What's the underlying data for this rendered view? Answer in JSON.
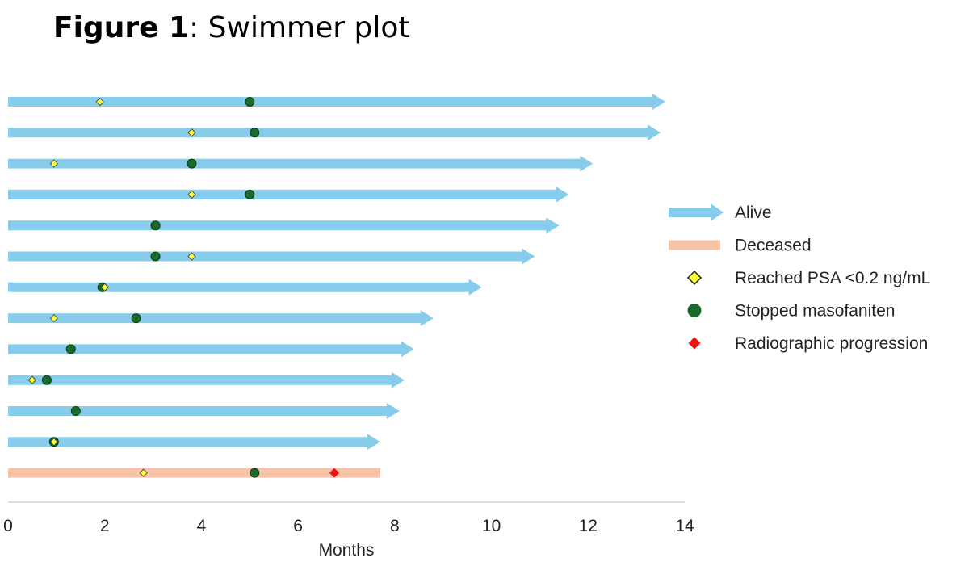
{
  "title": {
    "bold": "Figure 1",
    "rest": ": Swimmer plot"
  },
  "chart_data": {
    "type": "swimmer",
    "xlabel": "Months",
    "ylabel": "",
    "xlim": [
      0,
      14
    ],
    "xticks": [
      0,
      2,
      4,
      6,
      8,
      10,
      12,
      14
    ],
    "grid": false,
    "legend_position": "right",
    "colors": {
      "alive": "#87CDEB",
      "deceased": "#F6C3A8",
      "psa": "#FFFF33",
      "stopped": "#1A6B2A",
      "progression": "#EE1111"
    },
    "legend": [
      {
        "key": "alive",
        "label": "Alive"
      },
      {
        "key": "deceased",
        "label": "Deceased"
      },
      {
        "key": "psa",
        "label": "Reached PSA <0.2 ng/mL"
      },
      {
        "key": "stopped",
        "label": "Stopped masofaniten"
      },
      {
        "key": "progression",
        "label": "Radiographic progression"
      }
    ],
    "patients": [
      {
        "status": "alive",
        "duration": 13.6,
        "psa": 1.9,
        "stopped": 5.0,
        "progression": null
      },
      {
        "status": "alive",
        "duration": 13.5,
        "psa": 3.8,
        "stopped": 5.1,
        "progression": null
      },
      {
        "status": "alive",
        "duration": 12.1,
        "psa": 0.95,
        "stopped": 3.8,
        "progression": null
      },
      {
        "status": "alive",
        "duration": 11.6,
        "psa": 3.8,
        "stopped": 5.0,
        "progression": null
      },
      {
        "status": "alive",
        "duration": 11.4,
        "psa": null,
        "stopped": 3.05,
        "progression": null
      },
      {
        "status": "alive",
        "duration": 10.9,
        "psa": 3.8,
        "stopped": 3.05,
        "progression": null
      },
      {
        "status": "alive",
        "duration": 9.8,
        "psa": 2.0,
        "stopped": 1.95,
        "progression": null
      },
      {
        "status": "alive",
        "duration": 8.8,
        "psa": 0.95,
        "stopped": 2.65,
        "progression": null
      },
      {
        "status": "alive",
        "duration": 8.4,
        "psa": null,
        "stopped": 1.3,
        "progression": null
      },
      {
        "status": "alive",
        "duration": 8.2,
        "psa": 0.5,
        "stopped": 0.8,
        "progression": null
      },
      {
        "status": "alive",
        "duration": 8.1,
        "psa": null,
        "stopped": 1.4,
        "progression": null
      },
      {
        "status": "alive",
        "duration": 7.7,
        "psa": 0.95,
        "stopped": 0.95,
        "progression": null
      },
      {
        "status": "deceased",
        "duration": 7.7,
        "psa": 2.8,
        "stopped": 5.1,
        "progression": 6.75
      }
    ]
  }
}
